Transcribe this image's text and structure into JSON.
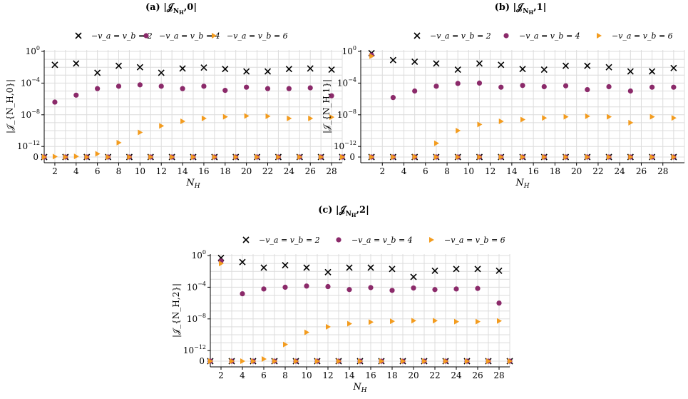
{
  "chart_data": [
    {
      "type": "scatter",
      "title": "(a) |𝒥",
      "title_sub": "N",
      "title_subsub": "H",
      "title_tail": ",0|",
      "ylabel": "|𝒥_{N_H,0}|",
      "xlabel": "N",
      "xlabel_sub": "H",
      "yscale": "symlog",
      "yticks": [
        "10",
        "10",
        "10",
        "0"
      ],
      "ytick_exp": [
        "0",
        "−4",
        "−8",
        "−12"
      ],
      "xticks": [
        "2",
        "4",
        "6",
        "8",
        "10",
        "12",
        "14",
        "16",
        "18",
        "20",
        "22",
        "24",
        "26",
        "28"
      ],
      "xlim": [
        1,
        29
      ],
      "grid": true,
      "legend_position": "top",
      "series": [
        {
          "name": "−v_a = v_b = 2",
          "marker": "x",
          "color": "#000000",
          "x": [
            1,
            2,
            3,
            4,
            5,
            6,
            7,
            8,
            9,
            10,
            11,
            12,
            13,
            14,
            15,
            16,
            17,
            18,
            19,
            20,
            21,
            22,
            23,
            24,
            25,
            26,
            27,
            28,
            29
          ],
          "y": [
            0,
            0.02,
            0,
            0.03,
            0,
            0.002,
            0,
            0.015,
            0,
            0.01,
            0,
            0.002,
            0,
            0.007,
            0,
            0.009,
            0,
            0.006,
            0,
            0.003,
            0,
            0.003,
            0,
            0.006,
            0,
            0.007,
            0,
            0.005,
            0
          ]
        },
        {
          "name": "−v_a = v_b = 4",
          "marker": "o",
          "color": "#8b2a6a",
          "x": [
            1,
            2,
            3,
            4,
            5,
            6,
            7,
            8,
            9,
            10,
            11,
            12,
            13,
            14,
            15,
            16,
            17,
            18,
            19,
            20,
            21,
            22,
            23,
            24,
            25,
            26,
            27,
            28,
            29
          ],
          "y": [
            0,
            4e-07,
            0,
            3e-06,
            0,
            2e-05,
            0,
            4e-05,
            0,
            6e-05,
            0,
            4e-05,
            0,
            2e-05,
            0,
            4e-05,
            0,
            1.2e-05,
            0,
            3e-05,
            0,
            2e-05,
            0,
            2e-05,
            0,
            2.5e-05,
            0,
            2.5e-06,
            0
          ]
        },
        {
          "name": "−v_a = v_b = 6",
          "marker": "triangle",
          "color": "#f39c1f",
          "x": [
            1,
            2,
            3,
            4,
            5,
            6,
            7,
            8,
            9,
            10,
            11,
            12,
            13,
            14,
            15,
            16,
            17,
            18,
            19,
            20,
            21,
            22,
            23,
            24,
            25,
            26,
            27,
            28,
            29
          ],
          "y": [
            0,
            4e-14,
            0,
            6e-14,
            0,
            3e-13,
            0,
            3e-12,
            0,
            6e-11,
            0,
            4e-10,
            0,
            1.5e-09,
            0,
            3.5e-09,
            0,
            5.5e-09,
            0,
            7e-09,
            0,
            6.5e-09,
            0,
            3.5e-09,
            0,
            3.5e-09,
            0,
            5e-09,
            0
          ]
        }
      ]
    },
    {
      "type": "scatter",
      "title": "(b) |𝒥",
      "title_sub": "N",
      "title_subsub": "H",
      "title_tail": ",1|",
      "ylabel": "|𝒥_{N_H,1}|",
      "xlabel": "N",
      "xlabel_sub": "H",
      "yscale": "symlog",
      "yticks": [
        "10",
        "10",
        "10",
        "10",
        "0"
      ],
      "ytick_exp": [
        "0",
        "−4",
        "−8",
        "−12"
      ],
      "xticks": [
        "2",
        "4",
        "6",
        "8",
        "10",
        "12",
        "14",
        "16",
        "18",
        "20",
        "22",
        "24",
        "26",
        "28"
      ],
      "xlim": [
        0,
        30
      ],
      "grid": true,
      "legend_position": "top",
      "series": [
        {
          "name": "−v_a = v_b = 2",
          "marker": "x",
          "color": "#000000",
          "x": [
            1,
            3,
            5,
            7,
            9,
            11,
            13,
            15,
            17,
            19,
            21,
            23,
            25,
            27,
            29,
            1,
            3,
            5,
            7,
            9,
            11,
            13,
            15,
            17,
            19,
            21,
            23,
            25,
            27,
            29
          ],
          "y": [
            0.6,
            0.08,
            0.05,
            0.03,
            0.005,
            0.03,
            0.02,
            0.006,
            0.005,
            0.015,
            0.015,
            0.01,
            0.003,
            0.003,
            0.008,
            0,
            0,
            0,
            0,
            0,
            0,
            0,
            0,
            0,
            0,
            0,
            0,
            0,
            0,
            0
          ]
        },
        {
          "name": "−v_a = v_b = 4",
          "marker": "o",
          "color": "#8b2a6a",
          "x": [
            1,
            3,
            5,
            7,
            9,
            11,
            13,
            15,
            17,
            19,
            21,
            23,
            25,
            27,
            29,
            1,
            3,
            5,
            7,
            9,
            11,
            13,
            15,
            17,
            19,
            21,
            23,
            25,
            27,
            29
          ],
          "y": [
            0.35,
            1.5e-06,
            1e-05,
            4e-05,
            9e-05,
            0.0001,
            3e-05,
            5e-05,
            3.5e-05,
            4.5e-05,
            1.5e-05,
            3.5e-05,
            1e-05,
            3e-05,
            3e-05,
            0,
            0,
            0,
            0,
            0,
            0,
            0,
            0,
            0,
            0,
            0,
            0,
            0,
            0,
            0
          ]
        },
        {
          "name": "−v_a = v_b = 6",
          "marker": "triangle",
          "color": "#f39c1f",
          "x": [
            1,
            3,
            5,
            7,
            9,
            11,
            13,
            15,
            17,
            19,
            21,
            23,
            25,
            27,
            29,
            1,
            3,
            5,
            7,
            9,
            11,
            13,
            15,
            17,
            19,
            21,
            23,
            25,
            27,
            29
          ],
          "y": [
            0.25,
            3e-15,
            3e-14,
            2.5e-12,
            1e-10,
            6e-10,
            1.5e-09,
            2.5e-09,
            4e-09,
            5.5e-09,
            6.5e-09,
            5.5e-09,
            1e-09,
            5.5e-09,
            4e-09,
            0,
            0,
            0,
            0,
            0,
            0,
            0,
            0,
            0,
            0,
            0,
            0,
            0,
            0,
            0
          ]
        }
      ]
    },
    {
      "type": "scatter",
      "title": "(c) |𝒥",
      "title_sub": "N",
      "title_subsub": "H",
      "title_tail": ",2|",
      "ylabel": "|𝒥_{N_H,2}|",
      "xlabel": "N",
      "xlabel_sub": "H",
      "yscale": "symlog",
      "yticks": [
        "10",
        "10",
        "10",
        "10",
        "0"
      ],
      "ytick_exp": [
        "0",
        "−4",
        "−8",
        "−12"
      ],
      "xticks": [
        "2",
        "4",
        "6",
        "8",
        "10",
        "12",
        "14",
        "16",
        "18",
        "20",
        "22",
        "24",
        "26",
        "28"
      ],
      "xlim": [
        1,
        29
      ],
      "grid": true,
      "legend_position": "top",
      "series": [
        {
          "name": "−v_a = v_b = 2",
          "marker": "x",
          "color": "#000000",
          "x": [
            1,
            2,
            3,
            4,
            5,
            6,
            7,
            8,
            9,
            10,
            11,
            12,
            13,
            14,
            15,
            16,
            17,
            18,
            19,
            20,
            21,
            22,
            23,
            24,
            25,
            26,
            27,
            28,
            29
          ],
          "y": [
            0,
            0.5,
            0,
            0.15,
            0,
            0.03,
            0,
            0.06,
            0,
            0.03,
            0,
            0.008,
            0,
            0.03,
            0,
            0.03,
            0,
            0.02,
            0,
            0.002,
            0,
            0.012,
            0,
            0.02,
            0,
            0.02,
            0,
            0.012,
            0
          ]
        },
        {
          "name": "−v_a = v_b = 4",
          "marker": "o",
          "color": "#8b2a6a",
          "x": [
            1,
            2,
            3,
            4,
            5,
            6,
            7,
            8,
            9,
            10,
            11,
            12,
            13,
            14,
            15,
            16,
            17,
            18,
            19,
            20,
            21,
            22,
            23,
            24,
            25,
            26,
            27,
            28,
            29
          ],
          "y": [
            0,
            0.2,
            0,
            1.5e-05,
            0,
            6e-05,
            0,
            0.0001,
            0,
            0.00014,
            0,
            0.00012,
            0,
            5e-05,
            0,
            9e-05,
            0,
            4e-05,
            0,
            8e-05,
            0,
            5e-05,
            0,
            6e-05,
            0,
            7e-05,
            0,
            1e-06,
            0
          ]
        },
        {
          "name": "−v_a = v_b = 6",
          "marker": "triangle",
          "color": "#f39c1f",
          "x": [
            1,
            2,
            3,
            4,
            5,
            6,
            7,
            8,
            9,
            10,
            11,
            12,
            13,
            14,
            15,
            16,
            17,
            18,
            19,
            20,
            21,
            22,
            23,
            24,
            25,
            26,
            27,
            28,
            29
          ],
          "y": [
            0,
            0.1,
            0,
            0,
            0,
            2e-13,
            0,
            6e-12,
            0,
            2e-10,
            0,
            1e-09,
            0,
            2.5e-09,
            0,
            4e-09,
            0,
            5e-09,
            0,
            6e-09,
            0,
            6e-09,
            0,
            4.5e-09,
            0,
            4.5e-09,
            0,
            5.5e-09,
            0
          ]
        }
      ]
    }
  ]
}
